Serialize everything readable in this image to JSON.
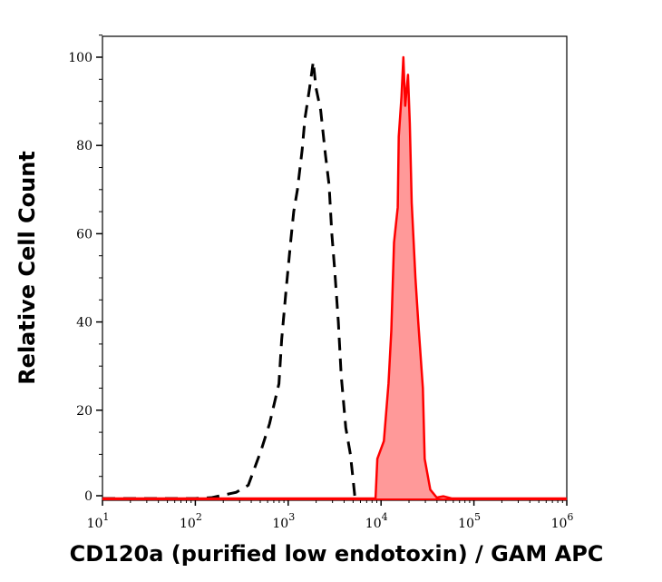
{
  "chart_data": {
    "type": "area",
    "title": "",
    "xlabel": "CD120a (purified low endotoxin) / GAM APC",
    "ylabel": "Relative Cell Count",
    "xscale": "log",
    "xlim_log10": [
      1,
      6
    ],
    "ylim": [
      0,
      105
    ],
    "grid": false,
    "x_ticks": [
      {
        "base": "10",
        "exp": "1",
        "log10": 1
      },
      {
        "base": "10",
        "exp": "2",
        "log10": 2
      },
      {
        "base": "10",
        "exp": "3",
        "log10": 3
      },
      {
        "base": "10",
        "exp": "4",
        "log10": 4
      },
      {
        "base": "10",
        "exp": "5",
        "log10": 5
      },
      {
        "base": "10",
        "exp": "6",
        "log10": 6
      }
    ],
    "y_ticks": [
      "0",
      "20",
      "40",
      "60",
      "80",
      "100"
    ],
    "series": [
      {
        "style": "dashed-line",
        "color": "#000000",
        "log10_x": [
          1.0,
          2.0,
          2.18,
          2.44,
          2.57,
          2.71,
          2.8,
          2.9,
          2.93,
          2.98,
          3.03,
          3.06,
          3.1,
          3.15,
          3.18,
          3.23,
          3.27,
          3.3,
          3.35,
          3.4,
          3.44,
          3.47,
          3.5,
          3.54,
          3.57,
          3.62,
          3.67,
          3.7,
          3.72
        ],
        "y": [
          0,
          0,
          0.2,
          1.4,
          3,
          11,
          17,
          26,
          36,
          48,
          59,
          65,
          70,
          79,
          86,
          93,
          99,
          93,
          88,
          78,
          71,
          60,
          52,
          40,
          28,
          16,
          10,
          4,
          0
        ]
      },
      {
        "style": "filled",
        "color": "#ff0000",
        "fill": "#ff9999",
        "log10_x": [
          1.0,
          3.94,
          3.96,
          4.03,
          4.08,
          4.11,
          4.14,
          4.18,
          4.19,
          4.22,
          4.24,
          4.26,
          4.29,
          4.31,
          4.33,
          4.37,
          4.4,
          4.45,
          4.47,
          4.53,
          4.6,
          4.67,
          4.76,
          6.0
        ],
        "y": [
          0,
          0,
          9,
          13,
          26,
          38,
          58,
          66,
          82,
          91,
          100,
          89,
          96,
          85,
          67,
          50,
          40,
          25,
          9,
          2,
          0.2,
          0.5,
          0,
          0
        ]
      }
    ]
  }
}
